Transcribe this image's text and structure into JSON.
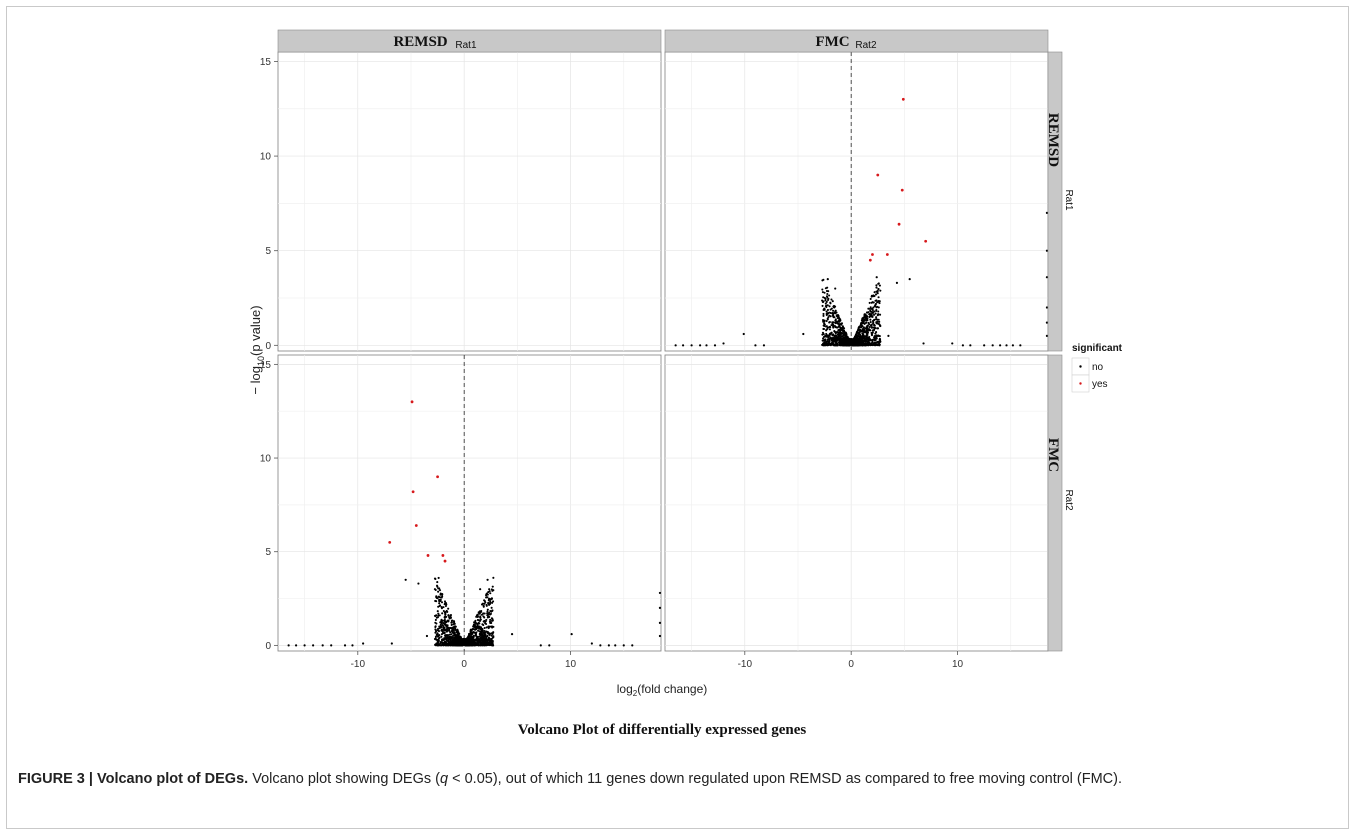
{
  "chart_data": {
    "type": "scatter",
    "facet_columns": [
      {
        "name": "REMSD",
        "sub": "Rat1"
      },
      {
        "name": "FMC",
        "sub": "Rat2"
      }
    ],
    "facet_rows": [
      {
        "name": "REMSD",
        "sub": "Rat1"
      },
      {
        "name": "FMC",
        "sub": "Rat2"
      }
    ],
    "xlabel_base": "log",
    "xlabel_sub": "2",
    "xlabel_rest": "(fold change)",
    "ylabel_main": "− log",
    "ylabel_sub": "10",
    "ylabel_rest": "(p value)",
    "xlim": [
      -17.5,
      18.5
    ],
    "ylim": [
      -0.3,
      15.5
    ],
    "x_ticks": [
      -10,
      0,
      10
    ],
    "y_ticks": [
      0,
      5,
      10,
      15
    ],
    "vline": 0,
    "grid": true,
    "bottom_title": "Volcano Plot of differentially expressed genes",
    "legend": {
      "title": "significant",
      "placement": "right",
      "entries": [
        {
          "label": "no",
          "color": "#000000"
        },
        {
          "label": "yes",
          "color": "#d7191c"
        }
      ]
    },
    "panels": [
      {
        "row": 0,
        "col": 1,
        "significant_points": [
          {
            "x": 4.9,
            "y": 13.0
          },
          {
            "x": 2.5,
            "y": 9.0
          },
          {
            "x": 4.8,
            "y": 8.2
          },
          {
            "x": 4.5,
            "y": 6.4
          },
          {
            "x": 7.0,
            "y": 5.5
          },
          {
            "x": 3.4,
            "y": 4.8
          },
          {
            "x": 2.0,
            "y": 4.8
          },
          {
            "x": 1.8,
            "y": 4.5
          }
        ],
        "extra_points": [
          {
            "x": 5.5,
            "y": 3.5
          },
          {
            "x": 4.3,
            "y": 3.3
          },
          {
            "x": 2.4,
            "y": 3.6
          },
          {
            "x": -2.2,
            "y": 3.5
          },
          {
            "x": -1.5,
            "y": 3.0
          },
          {
            "x": 3.5,
            "y": 0.5
          },
          {
            "x": 6.8,
            "y": 0.1
          },
          {
            "x": 9.5,
            "y": 0.1
          },
          {
            "x": -12.0,
            "y": 0.1
          },
          {
            "x": -10.1,
            "y": 0.6
          },
          {
            "x": -4.5,
            "y": 0.6
          },
          {
            "x": -16.5,
            "y": 0.0
          },
          {
            "x": -15.8,
            "y": 0.0
          },
          {
            "x": -15.0,
            "y": 0.0
          },
          {
            "x": -14.2,
            "y": 0.0
          },
          {
            "x": -13.6,
            "y": 0.0
          },
          {
            "x": -12.8,
            "y": 0.0
          },
          {
            "x": -9.0,
            "y": 0.0
          },
          {
            "x": -8.2,
            "y": 0.0
          },
          {
            "x": 10.5,
            "y": 0.0
          },
          {
            "x": 11.2,
            "y": 0.0
          },
          {
            "x": 12.5,
            "y": 0.0
          },
          {
            "x": 13.3,
            "y": 0.0
          },
          {
            "x": 14.0,
            "y": 0.0
          },
          {
            "x": 14.6,
            "y": 0.0
          },
          {
            "x": 15.2,
            "y": 0.0
          },
          {
            "x": 15.9,
            "y": 0.0
          },
          {
            "x": 18.4,
            "y": 0.5
          },
          {
            "x": 18.4,
            "y": 1.2
          },
          {
            "x": 18.4,
            "y": 2.0
          },
          {
            "x": 18.4,
            "y": 3.6
          },
          {
            "x": 18.4,
            "y": 5.0
          },
          {
            "x": 18.4,
            "y": 7.0
          }
        ]
      },
      {
        "row": 1,
        "col": 0,
        "significant_points": [
          {
            "x": -4.9,
            "y": 13.0
          },
          {
            "x": -2.5,
            "y": 9.0
          },
          {
            "x": -4.8,
            "y": 8.2
          },
          {
            "x": -4.5,
            "y": 6.4
          },
          {
            "x": -7.0,
            "y": 5.5
          },
          {
            "x": -3.4,
            "y": 4.8
          },
          {
            "x": -2.0,
            "y": 4.8
          },
          {
            "x": -1.8,
            "y": 4.5
          }
        ],
        "extra_points": [
          {
            "x": -5.5,
            "y": 3.5
          },
          {
            "x": -4.3,
            "y": 3.3
          },
          {
            "x": -2.4,
            "y": 3.6
          },
          {
            "x": 2.2,
            "y": 3.5
          },
          {
            "x": 1.5,
            "y": 3.0
          },
          {
            "x": -3.5,
            "y": 0.5
          },
          {
            "x": -6.8,
            "y": 0.1
          },
          {
            "x": -9.5,
            "y": 0.1
          },
          {
            "x": 12.0,
            "y": 0.1
          },
          {
            "x": 10.1,
            "y": 0.6
          },
          {
            "x": 4.5,
            "y": 0.6
          },
          {
            "x": -16.5,
            "y": 0.0
          },
          {
            "x": -15.8,
            "y": 0.0
          },
          {
            "x": -15.0,
            "y": 0.0
          },
          {
            "x": -14.2,
            "y": 0.0
          },
          {
            "x": -13.3,
            "y": 0.0
          },
          {
            "x": -12.5,
            "y": 0.0
          },
          {
            "x": -11.2,
            "y": 0.0
          },
          {
            "x": -10.5,
            "y": 0.0
          },
          {
            "x": 7.2,
            "y": 0.0
          },
          {
            "x": 8.0,
            "y": 0.0
          },
          {
            "x": 12.8,
            "y": 0.0
          },
          {
            "x": 13.6,
            "y": 0.0
          },
          {
            "x": 14.2,
            "y": 0.0
          },
          {
            "x": 15.0,
            "y": 0.0
          },
          {
            "x": 15.8,
            "y": 0.0
          },
          {
            "x": 18.4,
            "y": 0.5
          },
          {
            "x": 18.4,
            "y": 1.2
          },
          {
            "x": 18.4,
            "y": 2.0
          },
          {
            "x": 18.4,
            "y": 2.8
          }
        ]
      }
    ]
  },
  "caption": {
    "label": "FIGURE 3 | Volcano plot of DEGs.",
    "text_before_q": " Volcano plot showing DEGs (",
    "q": "q",
    "text_after_q": " < 0.05), out of which 11 genes down regulated upon REMSD as compared to free moving control (FMC)."
  }
}
